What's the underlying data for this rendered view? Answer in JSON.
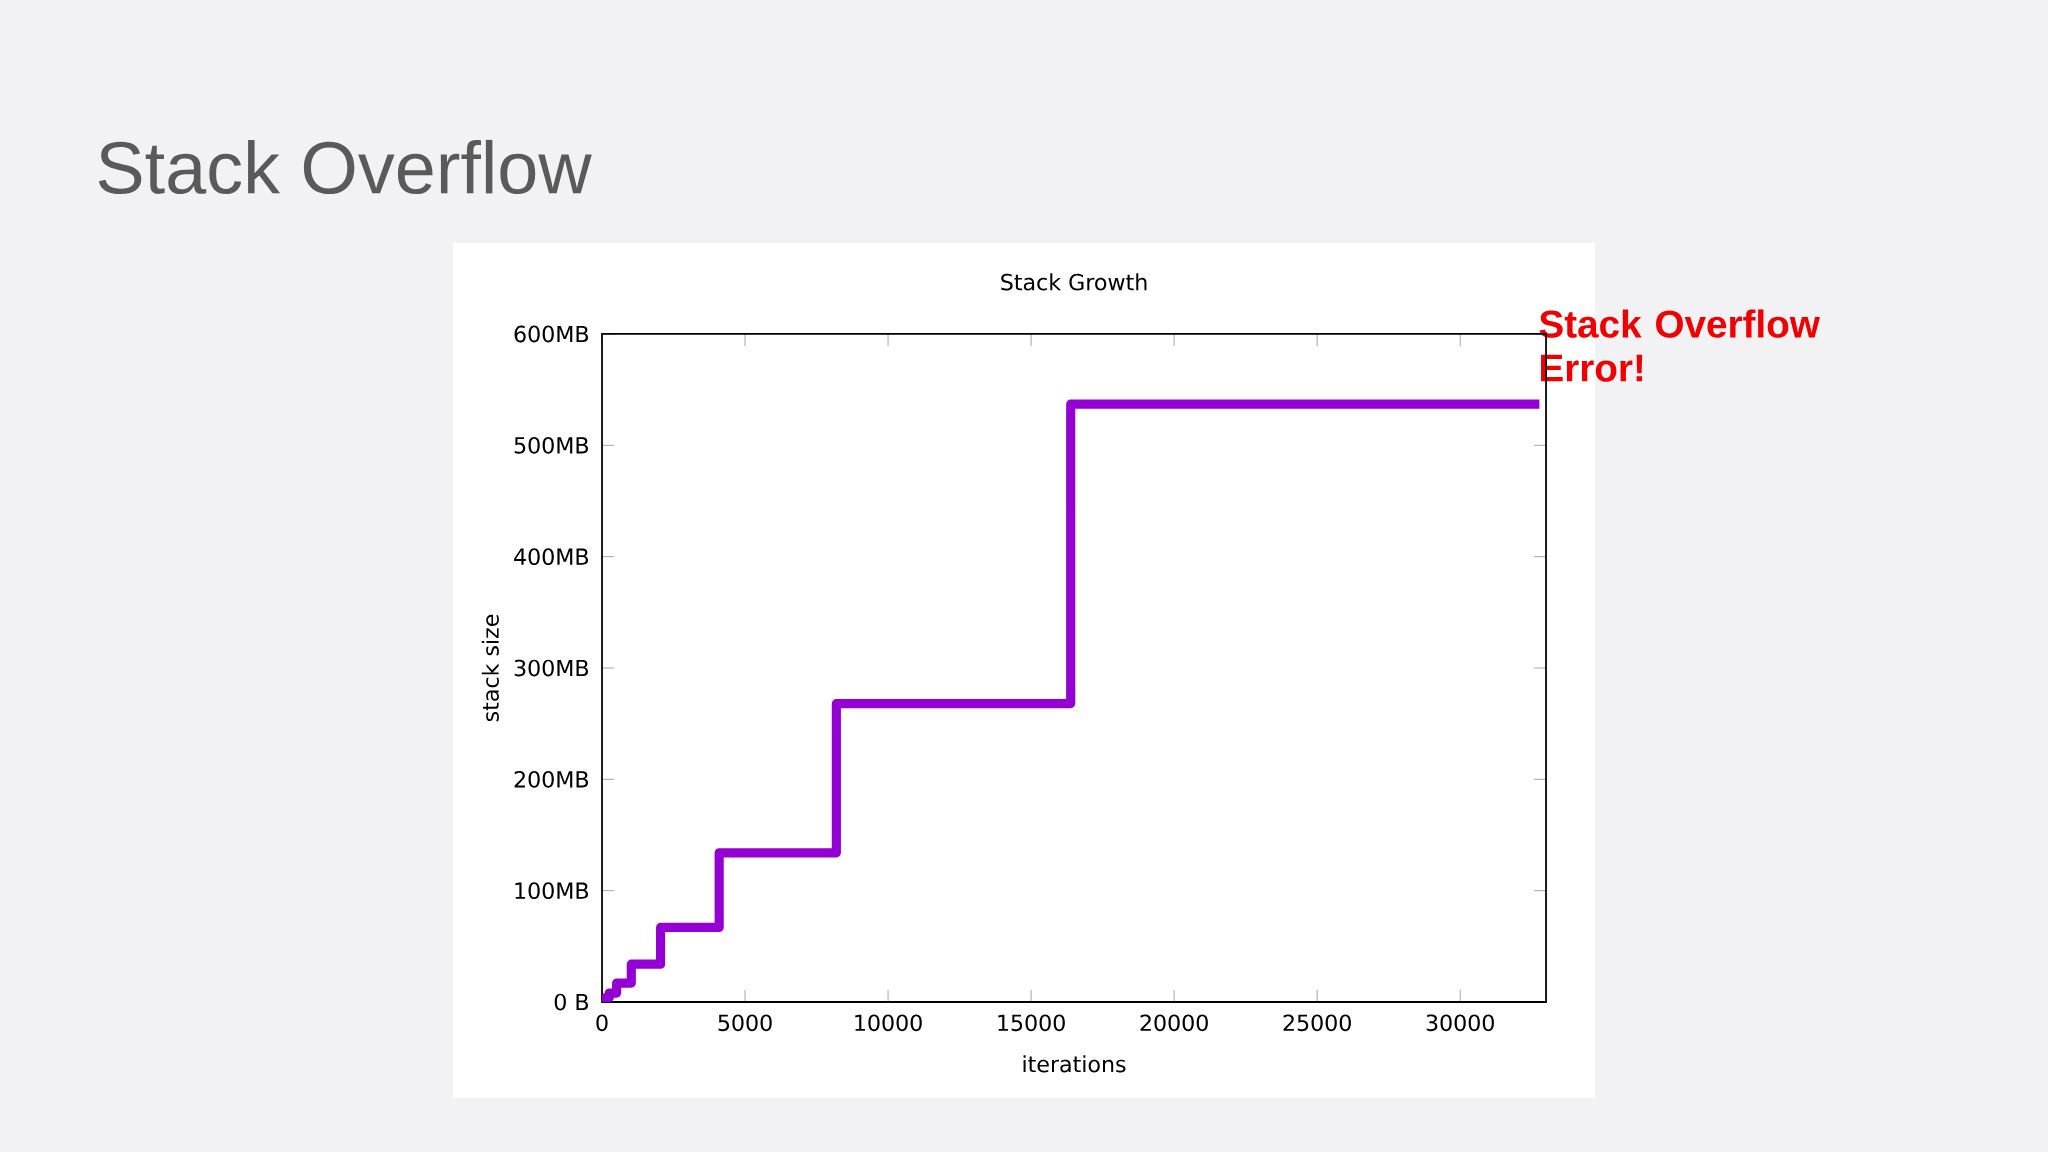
{
  "chart_data": {
    "type": "step",
    "title": "Stack Growth",
    "xlabel": "iterations",
    "ylabel": "stack size",
    "annotations": [
      "Stack Overflow",
      "Stack Overflow Error!"
    ],
    "x": [
      0,
      128,
      256,
      512,
      1024,
      2048,
      4096,
      8192,
      16384,
      32768
    ],
    "series": [
      {
        "color": "#9400d3",
        "values": [
          2,
          4,
          8,
          17,
          34,
          67,
          134,
          268,
          537,
          537
        ]
      }
    ],
    "xlim": [
      0,
      33000
    ],
    "xticks": [
      0,
      5000,
      10000,
      15000,
      20000,
      25000,
      30000
    ],
    "ylim": [
      0,
      600
    ],
    "yticks": [
      {
        "value": 0,
        "label": "0 B"
      },
      {
        "value": 100,
        "label": "100MB"
      },
      {
        "value": 200,
        "label": "200MB"
      },
      {
        "value": 300,
        "label": "300MB"
      },
      {
        "value": 400,
        "label": "400MB"
      },
      {
        "value": 500,
        "label": "500MB"
      },
      {
        "value": 600,
        "label": "600MB"
      }
    ],
    "grid": false
  }
}
